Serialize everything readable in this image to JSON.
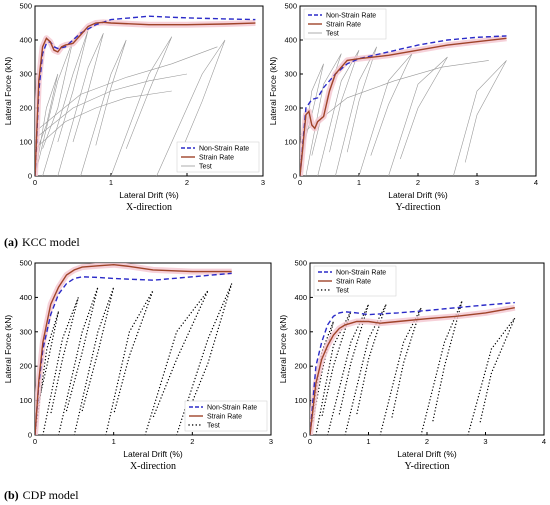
{
  "panels": [
    {
      "label": "(a)",
      "title": "KCC model"
    },
    {
      "label": "(b)",
      "title": "CDP model"
    }
  ],
  "colors": {
    "non_strain": "#2b2bc8",
    "strain": "#a0442a",
    "test_kcc": "#9a9a9a",
    "test_cdp": "#000000",
    "band": "#f4c6cf"
  },
  "chart_data": [
    {
      "type": "line",
      "panel": "KCC model",
      "subtitle": "X-direction",
      "xlabel": "Lateral Drift (%)",
      "ylabel": "Lateral Force (kN)",
      "xlim": [
        0,
        3
      ],
      "ylim": [
        0,
        500
      ],
      "xticks": [
        0,
        1,
        2,
        3
      ],
      "yticks": [
        0,
        100,
        200,
        300,
        400,
        500
      ],
      "legend": [
        "Non-Strain Rate",
        "Strain Rate",
        "Test"
      ],
      "legend_position": "bottom-right",
      "test_style": "line",
      "series": [
        {
          "name": "Non-Strain Rate",
          "x": [
            0,
            0.05,
            0.1,
            0.15,
            0.2,
            0.25,
            0.3,
            0.4,
            0.5,
            0.6,
            0.8,
            1.0,
            1.5,
            2.0,
            2.5,
            2.9
          ],
          "y": [
            0,
            250,
            360,
            390,
            395,
            380,
            375,
            380,
            400,
            420,
            445,
            460,
            470,
            465,
            462,
            460
          ]
        },
        {
          "name": "Strain Rate",
          "x": [
            0,
            0.05,
            0.1,
            0.15,
            0.2,
            0.25,
            0.3,
            0.35,
            0.4,
            0.5,
            0.6,
            0.7,
            0.8,
            0.9,
            1.0,
            1.5,
            2.0,
            2.5,
            2.9
          ],
          "y": [
            0,
            280,
            380,
            405,
            395,
            370,
            365,
            380,
            385,
            390,
            415,
            440,
            450,
            452,
            450,
            445,
            445,
            447,
            450
          ]
        }
      ],
      "test_loops": [
        {
          "x": [
            0,
            0.15,
            0.3,
            0.15,
            0
          ],
          "y": [
            0,
            200,
            300,
            150,
            60
          ]
        },
        {
          "x": [
            0,
            0.3,
            0.5,
            0.3,
            0.1
          ],
          "y": [
            0,
            280,
            400,
            200,
            80
          ]
        },
        {
          "x": [
            0.1,
            0.5,
            0.7,
            0.5,
            0.3
          ],
          "y": [
            0,
            300,
            430,
            250,
            100
          ]
        },
        {
          "x": [
            0.3,
            0.7,
            0.9,
            0.7,
            0.5
          ],
          "y": [
            0,
            320,
            420,
            250,
            100
          ]
        },
        {
          "x": [
            0.6,
            1.0,
            1.2,
            1.0,
            0.8
          ],
          "y": [
            0,
            300,
            400,
            260,
            90
          ]
        },
        {
          "x": [
            1.0,
            1.5,
            1.8,
            1.5,
            1.2
          ],
          "y": [
            0,
            300,
            410,
            250,
            80
          ]
        },
        {
          "x": [
            1.6,
            2.2,
            2.5,
            2.2,
            1.9
          ],
          "y": [
            0,
            300,
            400,
            220,
            60
          ]
        },
        {
          "x": [
            0,
            0.4,
            0.8,
            1.2,
            1.8
          ],
          "y": [
            80,
            160,
            200,
            230,
            250
          ]
        },
        {
          "x": [
            0,
            0.5,
            1.0,
            1.5,
            2.0
          ],
          "y": [
            110,
            200,
            250,
            280,
            300
          ]
        },
        {
          "x": [
            0,
            0.6,
            1.2,
            1.8,
            2.4
          ],
          "y": [
            130,
            240,
            290,
            330,
            380
          ]
        }
      ]
    },
    {
      "type": "line",
      "panel": "KCC model",
      "subtitle": "Y-direction",
      "xlabel": "Lateral Drift (%)",
      "ylabel": "Lateral Force (kN)",
      "xlim": [
        0,
        4
      ],
      "ylim": [
        0,
        500
      ],
      "xticks": [
        0,
        1,
        2,
        3,
        4
      ],
      "yticks": [
        0,
        100,
        200,
        300,
        400,
        500
      ],
      "legend": [
        "Non-Strain Rate",
        "Strain Rate",
        "Test"
      ],
      "legend_position": "top-left",
      "test_style": "line",
      "series": [
        {
          "name": "Non-Strain Rate",
          "x": [
            0,
            0.1,
            0.2,
            0.3,
            0.4,
            0.5,
            0.6,
            0.8,
            1.0,
            1.5,
            2.0,
            2.5,
            3.0,
            3.5
          ],
          "y": [
            0,
            200,
            225,
            230,
            260,
            280,
            300,
            330,
            345,
            365,
            385,
            400,
            408,
            412
          ]
        },
        {
          "name": "Strain Rate",
          "x": [
            0,
            0.1,
            0.15,
            0.2,
            0.25,
            0.3,
            0.4,
            0.5,
            0.6,
            0.7,
            0.8,
            1.0,
            1.5,
            2.0,
            2.5,
            3.0,
            3.5
          ],
          "y": [
            0,
            180,
            190,
            150,
            140,
            160,
            175,
            250,
            300,
            320,
            340,
            345,
            355,
            370,
            385,
            395,
            405
          ]
        }
      ],
      "test_loops": [
        {
          "x": [
            0,
            0.2,
            0.4,
            0.2,
            0
          ],
          "y": [
            0,
            250,
            330,
            180,
            50
          ]
        },
        {
          "x": [
            0.1,
            0.4,
            0.7,
            0.4,
            0.2
          ],
          "y": [
            0,
            270,
            360,
            200,
            60
          ]
        },
        {
          "x": [
            0.3,
            0.7,
            1.0,
            0.7,
            0.5
          ],
          "y": [
            0,
            280,
            370,
            220,
            70
          ]
        },
        {
          "x": [
            0.6,
            1.0,
            1.3,
            1.0,
            0.8
          ],
          "y": [
            0,
            280,
            380,
            220,
            70
          ]
        },
        {
          "x": [
            1.0,
            1.5,
            1.9,
            1.5,
            1.2
          ],
          "y": [
            0,
            280,
            360,
            210,
            60
          ]
        },
        {
          "x": [
            1.5,
            2.0,
            2.5,
            2.0,
            1.7
          ],
          "y": [
            0,
            270,
            350,
            200,
            50
          ]
        },
        {
          "x": [
            2.6,
            3.0,
            3.5,
            3.0,
            2.8
          ],
          "y": [
            0,
            250,
            340,
            180,
            40
          ]
        },
        {
          "x": [
            0,
            0.8,
            1.6,
            2.4,
            3.2
          ],
          "y": [
            120,
            230,
            280,
            320,
            340
          ]
        }
      ]
    },
    {
      "type": "line",
      "panel": "CDP model",
      "subtitle": "X-direction",
      "xlabel": "Lateral Drift (%)",
      "ylabel": "Lateral Force (kN)",
      "xlim": [
        0,
        3
      ],
      "ylim": [
        0,
        500
      ],
      "xticks": [
        0,
        1,
        2,
        3
      ],
      "yticks": [
        0,
        100,
        200,
        300,
        400,
        500
      ],
      "legend": [
        "Non-Strain Rate",
        "Strain Rate",
        "Test"
      ],
      "legend_position": "bottom-right",
      "test_style": "dots",
      "series": [
        {
          "name": "Non-Strain Rate",
          "x": [
            0,
            0.05,
            0.1,
            0.2,
            0.3,
            0.4,
            0.5,
            0.6,
            0.8,
            1.0,
            1.5,
            2.0,
            2.5
          ],
          "y": [
            0,
            150,
            250,
            350,
            410,
            440,
            455,
            460,
            458,
            455,
            450,
            460,
            470
          ]
        },
        {
          "name": "Strain Rate",
          "x": [
            0,
            0.05,
            0.1,
            0.2,
            0.3,
            0.4,
            0.5,
            0.6,
            0.8,
            1.0,
            1.2,
            1.5,
            2.0,
            2.5
          ],
          "y": [
            0,
            160,
            270,
            380,
            430,
            465,
            480,
            488,
            492,
            495,
            490,
            480,
            475,
            475
          ]
        }
      ],
      "test_loops": [
        {
          "x": [
            0,
            0.15,
            0.3,
            0.15,
            0
          ],
          "y": [
            0,
            250,
            360,
            200,
            50
          ]
        },
        {
          "x": [
            0.1,
            0.35,
            0.55,
            0.35,
            0.2
          ],
          "y": [
            0,
            280,
            400,
            220,
            60
          ]
        },
        {
          "x": [
            0.3,
            0.6,
            0.8,
            0.6,
            0.4
          ],
          "y": [
            0,
            300,
            430,
            240,
            70
          ]
        },
        {
          "x": [
            0.5,
            0.8,
            1.0,
            0.8,
            0.6
          ],
          "y": [
            0,
            300,
            430,
            240,
            70
          ]
        },
        {
          "x": [
            0.9,
            1.2,
            1.5,
            1.2,
            1.0
          ],
          "y": [
            0,
            300,
            420,
            230,
            60
          ]
        },
        {
          "x": [
            1.4,
            1.8,
            2.2,
            1.8,
            1.5
          ],
          "y": [
            0,
            300,
            420,
            220,
            50
          ]
        },
        {
          "x": [
            1.8,
            2.2,
            2.5,
            2.2,
            1.9
          ],
          "y": [
            0,
            280,
            440,
            210,
            40
          ]
        }
      ]
    },
    {
      "type": "line",
      "panel": "CDP model",
      "subtitle": "Y-direction",
      "xlabel": "Lateral Drift (%)",
      "ylabel": "Lateral Force (kN)",
      "xlim": [
        0,
        4
      ],
      "ylim": [
        0,
        500
      ],
      "xticks": [
        0,
        1,
        2,
        3,
        4
      ],
      "yticks": [
        0,
        100,
        200,
        300,
        400,
        500
      ],
      "legend": [
        "Non-Strain Rate",
        "Strain Rate",
        "Test"
      ],
      "legend_position": "top-left",
      "test_style": "dots",
      "series": [
        {
          "name": "Non-Strain Rate",
          "x": [
            0,
            0.1,
            0.2,
            0.3,
            0.4,
            0.5,
            0.6,
            0.8,
            1.0,
            1.5,
            2.0,
            2.5,
            3.0,
            3.5
          ],
          "y": [
            0,
            200,
            270,
            320,
            345,
            355,
            358,
            355,
            350,
            355,
            362,
            370,
            378,
            385
          ]
        },
        {
          "name": "Strain Rate",
          "x": [
            0,
            0.1,
            0.2,
            0.3,
            0.4,
            0.5,
            0.6,
            0.8,
            1.0,
            1.2,
            1.5,
            2.0,
            2.5,
            3.0,
            3.5
          ],
          "y": [
            0,
            150,
            220,
            260,
            290,
            310,
            320,
            330,
            330,
            325,
            330,
            338,
            345,
            355,
            370
          ]
        }
      ],
      "test_loops": [
        {
          "x": [
            0,
            0.2,
            0.4,
            0.2,
            0.05
          ],
          "y": [
            0,
            240,
            330,
            180,
            40
          ]
        },
        {
          "x": [
            0.1,
            0.4,
            0.7,
            0.4,
            0.2
          ],
          "y": [
            0,
            260,
            360,
            200,
            50
          ]
        },
        {
          "x": [
            0.3,
            0.7,
            1.0,
            0.7,
            0.5
          ],
          "y": [
            0,
            270,
            380,
            210,
            60
          ]
        },
        {
          "x": [
            0.6,
            1.0,
            1.3,
            1.0,
            0.8
          ],
          "y": [
            0,
            280,
            380,
            220,
            60
          ]
        },
        {
          "x": [
            1.2,
            1.6,
            1.9,
            1.6,
            1.4
          ],
          "y": [
            0,
            270,
            370,
            210,
            50
          ]
        },
        {
          "x": [
            1.9,
            2.3,
            2.6,
            2.3,
            2.1
          ],
          "y": [
            0,
            270,
            390,
            200,
            40
          ]
        },
        {
          "x": [
            2.7,
            3.1,
            3.5,
            3.1,
            2.9
          ],
          "y": [
            0,
            250,
            340,
            180,
            30
          ]
        }
      ]
    }
  ]
}
